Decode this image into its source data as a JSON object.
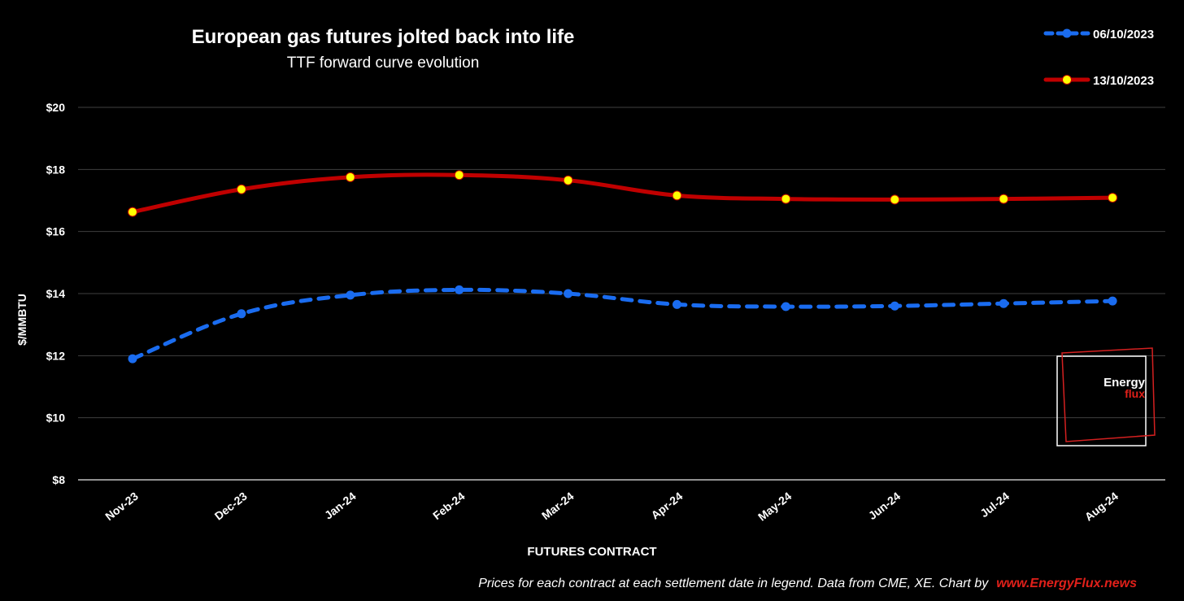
{
  "chart_data": {
    "type": "line",
    "title": "European gas futures jolted back into life",
    "subtitle": "TTF forward curve evolution",
    "xlabel": "FUTURES CONTRACT",
    "ylabel": "$/MMBTU",
    "categories": [
      "Nov-23",
      "Dec-23",
      "Jan-24",
      "Feb-24",
      "Mar-24",
      "Apr-24",
      "May-24",
      "Jun-24",
      "Jul-24",
      "Aug-24"
    ],
    "yticks": [
      "$8",
      "$10",
      "$12",
      "$14",
      "$16",
      "$18",
      "$20"
    ],
    "ylim": [
      8,
      20
    ],
    "grid": true,
    "legend_position": "top-right",
    "series": [
      {
        "name": "06/10/2023",
        "color": "#1a6cf0",
        "marker_color": "#1a6cf0",
        "line_style": "dashed",
        "values": [
          11.9,
          13.35,
          13.95,
          14.12,
          14.0,
          13.65,
          13.58,
          13.6,
          13.68,
          13.76
        ]
      },
      {
        "name": "13/10/2023",
        "color": "#c00000",
        "marker_color": "#ffff00",
        "line_style": "solid",
        "values": [
          16.63,
          17.36,
          17.75,
          17.82,
          17.65,
          17.16,
          17.05,
          17.03,
          17.05,
          17.09
        ]
      }
    ],
    "footnote": "Prices for each contract at each settlement date in legend. Data from CME, XE. Chart by",
    "footnote_link": "www.EnergyFlux.news",
    "logo": {
      "line1": "Energy",
      "line2": "flux"
    }
  },
  "colors": {
    "background": "#000000",
    "text": "#ffffff",
    "grid": "#404040",
    "link": "#e0201a"
  }
}
